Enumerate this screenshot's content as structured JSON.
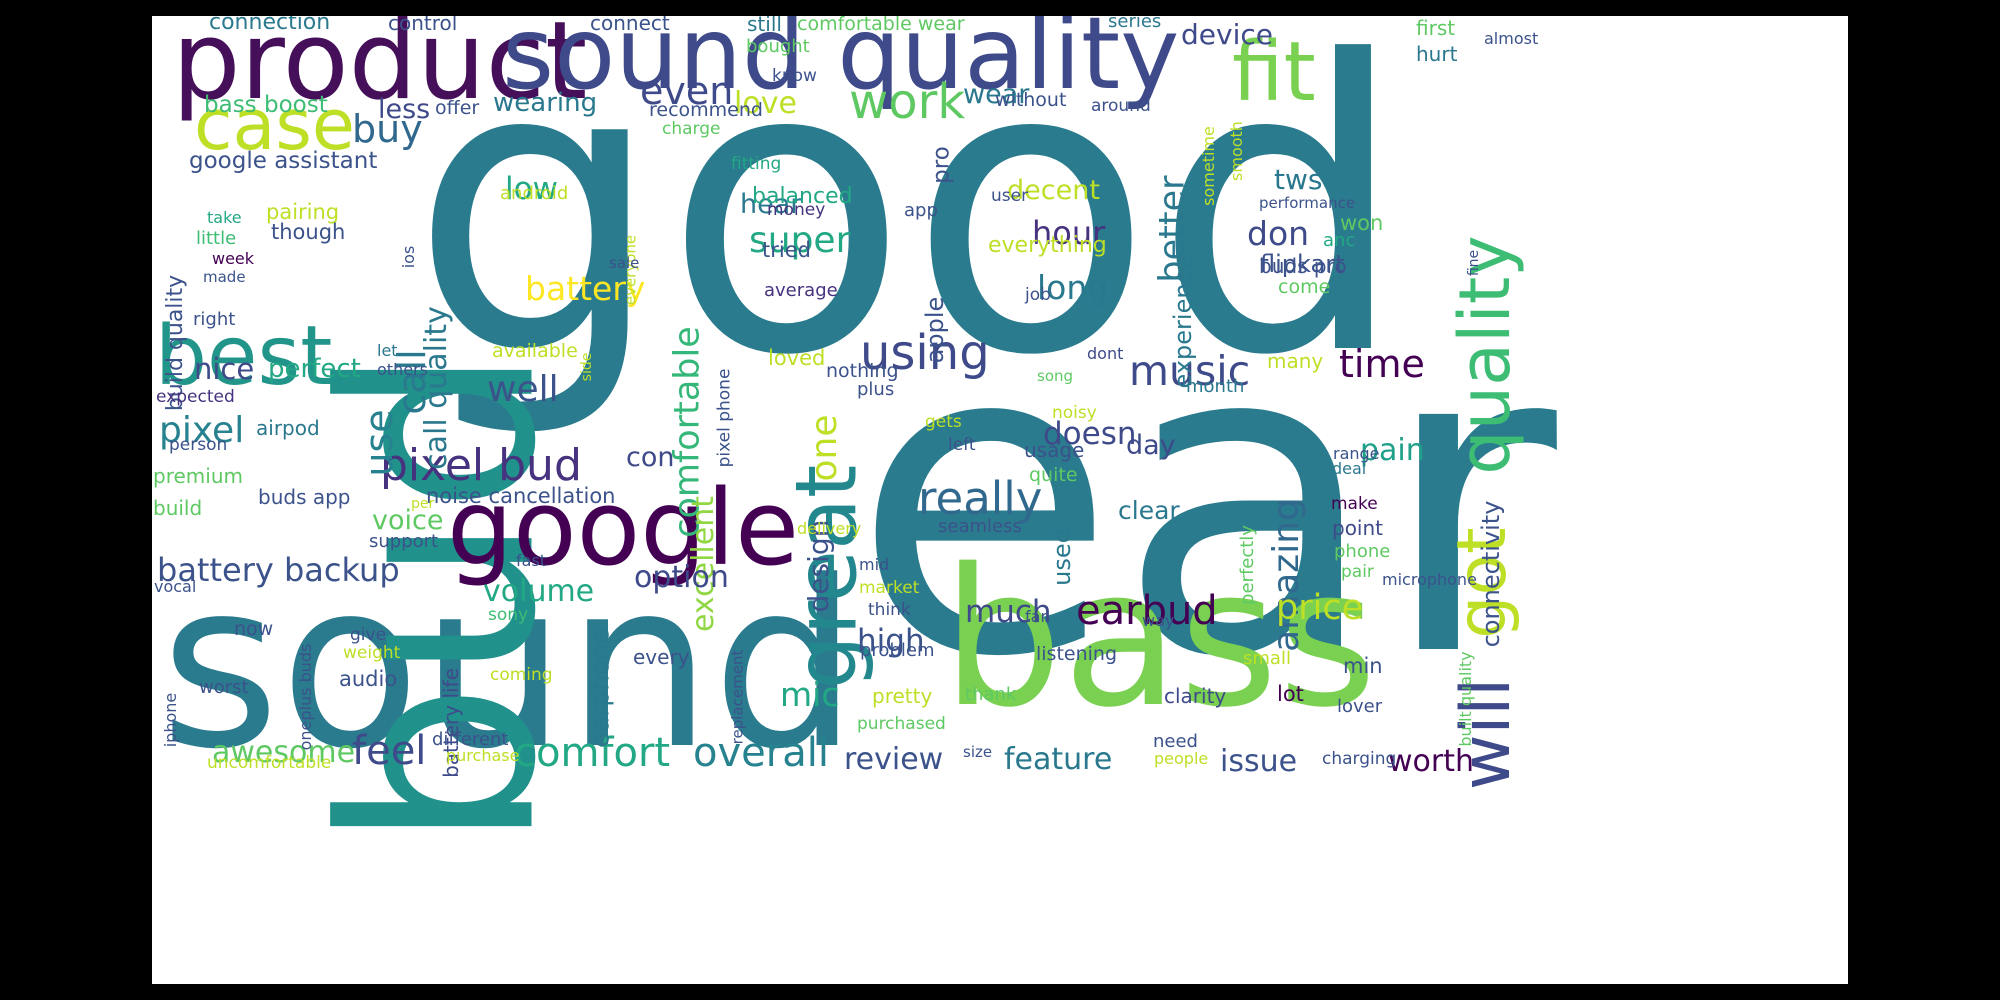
{
  "words": [
    {
      "text": "good",
      "color": "#2a7b8e"
    },
    {
      "text": "ear",
      "color": "#2a7b8e"
    },
    {
      "text": "sound",
      "color": "#2a7b8e"
    },
    {
      "text": "bass",
      "color": "#7ad151"
    },
    {
      "text": "bud",
      "color": "#21918c"
    },
    {
      "text": "product",
      "color": "#450f5a"
    },
    {
      "text": "sound quality",
      "color": "#3e4a89"
    },
    {
      "text": "google",
      "color": "#440154"
    },
    {
      "text": "great",
      "color": "#23888e"
    },
    {
      "text": "best",
      "color": "#22958b"
    },
    {
      "text": "case",
      "color": "#bddf26"
    },
    {
      "text": "fit",
      "color": "#7ad151"
    },
    {
      "text": "quality",
      "color": "#3dbc74"
    },
    {
      "text": "got",
      "color": "#bddf26"
    },
    {
      "text": "will",
      "color": "#3e4a89"
    },
    {
      "text": "pixel bud",
      "color": "#46327e"
    },
    {
      "text": "work",
      "color": "#5ec962"
    },
    {
      "text": "using",
      "color": "#3e4a89"
    },
    {
      "text": "really",
      "color": "#31688e"
    },
    {
      "text": "earbud",
      "color": "#440154"
    },
    {
      "text": "music",
      "color": "#3e4a89"
    },
    {
      "text": "time",
      "color": "#440154"
    },
    {
      "text": "amazing",
      "color": "#31688e"
    },
    {
      "text": "comfortable",
      "color": "#35b779"
    },
    {
      "text": "call",
      "color": "#2a788e"
    },
    {
      "text": "comfort",
      "color": "#22a884"
    },
    {
      "text": "overall",
      "color": "#26828e"
    },
    {
      "text": "feel",
      "color": "#3e4a89"
    },
    {
      "text": "battery backup",
      "color": "#3b528b"
    },
    {
      "text": "price",
      "color": "#bddf26"
    },
    {
      "text": "excellent",
      "color": "#90d743"
    },
    {
      "text": "one",
      "color": "#bddf26"
    },
    {
      "text": "even",
      "color": "#3e4a89"
    },
    {
      "text": "buy",
      "color": "#31688e"
    },
    {
      "text": "use",
      "color": "#26828e"
    },
    {
      "text": "call quality",
      "color": "#2a788e"
    },
    {
      "text": "better",
      "color": "#2a788e"
    },
    {
      "text": "super",
      "color": "#22a884"
    },
    {
      "text": "battery",
      "color": "#fde725"
    },
    {
      "text": "well",
      "color": "#3b528b"
    },
    {
      "text": "pixel",
      "color": "#26828e"
    },
    {
      "text": "don",
      "color": "#3e4a89"
    },
    {
      "text": "hour",
      "color": "#46327e"
    },
    {
      "text": "long",
      "color": "#2a788e"
    },
    {
      "text": "volume",
      "color": "#22a884"
    },
    {
      "text": "option",
      "color": "#3e4a89"
    },
    {
      "text": "awesome",
      "color": "#5ec962"
    },
    {
      "text": "review",
      "color": "#3b528b"
    },
    {
      "text": "feature",
      "color": "#2a788e"
    },
    {
      "text": "issue",
      "color": "#3b528b"
    },
    {
      "text": "worth",
      "color": "#440154"
    },
    {
      "text": "much",
      "color": "#3e4a89"
    },
    {
      "text": "high",
      "color": "#3b528b"
    },
    {
      "text": "mic",
      "color": "#22a884"
    },
    {
      "text": "pain",
      "color": "#1fa088"
    },
    {
      "text": "connectivity",
      "color": "#3b528b"
    },
    {
      "text": "design",
      "color": "#3b528b"
    },
    {
      "text": "doesn",
      "color": "#3e4a89"
    },
    {
      "text": "low",
      "color": "#22a884"
    },
    {
      "text": "nice",
      "color": "#3e4a89"
    },
    {
      "text": "perfect",
      "color": "#22a884"
    },
    {
      "text": "decent",
      "color": "#bddf26"
    },
    {
      "text": "tws",
      "color": "#2a788e"
    },
    {
      "text": "flipkart",
      "color": "#3b528b"
    },
    {
      "text": "device",
      "color": "#3e4a89"
    },
    {
      "text": "wear",
      "color": "#2a788e"
    },
    {
      "text": "love",
      "color": "#bddf26"
    },
    {
      "text": "wearing",
      "color": "#2a788e"
    },
    {
      "text": "less",
      "color": "#3e4a89"
    },
    {
      "text": "bass boost",
      "color": "#3dbc74"
    },
    {
      "text": "google assistant",
      "color": "#3b528b"
    },
    {
      "text": "build quality",
      "color": "#3b528b"
    },
    {
      "text": "experience",
      "color": "#2a788e"
    },
    {
      "text": "earphone",
      "color": "#2a788e"
    },
    {
      "text": "used",
      "color": "#2a788e"
    },
    {
      "text": "apple",
      "color": "#3b528b"
    },
    {
      "text": "pro",
      "color": "#3b528b"
    },
    {
      "text": "hear",
      "color": "#2a788e"
    },
    {
      "text": "balanced",
      "color": "#22a884"
    },
    {
      "text": "everything",
      "color": "#bddf26"
    },
    {
      "text": "day",
      "color": "#3e4a89"
    },
    {
      "text": "con",
      "color": "#3e4a89"
    },
    {
      "text": "voice",
      "color": "#5ec962"
    },
    {
      "text": "clear",
      "color": "#2a788e"
    },
    {
      "text": "noise cancellation",
      "color": "#3b528b"
    },
    {
      "text": "connection",
      "color": "#2a788e"
    },
    {
      "text": "control",
      "color": "#3b528b"
    },
    {
      "text": "connect",
      "color": "#3b528b"
    },
    {
      "text": "still",
      "color": "#2a788e"
    },
    {
      "text": "comfortable wear",
      "color": "#5ec962"
    },
    {
      "text": "series",
      "color": "#2a788e"
    },
    {
      "text": "first",
      "color": "#5ec962"
    },
    {
      "text": "almost",
      "color": "#3b528b"
    },
    {
      "text": "hurt",
      "color": "#2a788e"
    },
    {
      "text": "bought",
      "color": "#5ec962"
    },
    {
      "text": "know",
      "color": "#3b528b"
    },
    {
      "text": "without",
      "color": "#3b528b"
    },
    {
      "text": "around",
      "color": "#3b528b"
    },
    {
      "text": "sometime",
      "color": "#bddf26"
    },
    {
      "text": "smooth",
      "color": "#bddf26"
    },
    {
      "text": "offer",
      "color": "#3b528b"
    },
    {
      "text": "recommend",
      "color": "#3b528b"
    },
    {
      "text": "charge",
      "color": "#5ec962"
    },
    {
      "text": "fitting",
      "color": "#22a884"
    },
    {
      "text": "android",
      "color": "#bddf26"
    },
    {
      "text": "everyone",
      "color": "#bddf26"
    },
    {
      "text": "money",
      "color": "#46327e"
    },
    {
      "text": "app",
      "color": "#3b528b"
    },
    {
      "text": "user",
      "color": "#3b528b"
    },
    {
      "text": "performance",
      "color": "#3b528b"
    },
    {
      "text": "won",
      "color": "#5ec962"
    },
    {
      "text": "anc",
      "color": "#22a884"
    },
    {
      "text": "fine",
      "color": "#3b528b"
    },
    {
      "text": "take",
      "color": "#22a884"
    },
    {
      "text": "little",
      "color": "#3dbc74"
    },
    {
      "text": "pairing",
      "color": "#bddf26"
    },
    {
      "text": "though",
      "color": "#3b528b"
    },
    {
      "text": "ios",
      "color": "#3b528b"
    },
    {
      "text": "week",
      "color": "#440154"
    },
    {
      "text": "made",
      "color": "#3b528b"
    },
    {
      "text": "sale",
      "color": "#3b528b"
    },
    {
      "text": "tried",
      "color": "#3b528b"
    },
    {
      "text": "average",
      "color": "#46327e"
    },
    {
      "text": "job",
      "color": "#3b528b"
    },
    {
      "text": "buds pro",
      "color": "#3b528b"
    },
    {
      "text": "come",
      "color": "#5ec962"
    },
    {
      "text": "right",
      "color": "#3b528b"
    },
    {
      "text": "let",
      "color": "#2a788e"
    },
    {
      "text": "available",
      "color": "#bddf26"
    },
    {
      "text": "loved",
      "color": "#bddf26"
    },
    {
      "text": "dont",
      "color": "#3e4a89"
    },
    {
      "text": "many",
      "color": "#bddf26"
    },
    {
      "text": "others",
      "color": "#3b528b"
    },
    {
      "text": "side",
      "color": "#bddf26"
    },
    {
      "text": "nothing",
      "color": "#3b528b"
    },
    {
      "text": "plus",
      "color": "#3b528b"
    },
    {
      "text": "song",
      "color": "#5ec962"
    },
    {
      "text": "month",
      "color": "#2a788e"
    },
    {
      "text": "expected",
      "color": "#46327e"
    },
    {
      "text": "pixel phone",
      "color": "#3b528b"
    },
    {
      "text": "person",
      "color": "#3b528b"
    },
    {
      "text": "airpod",
      "color": "#2a788e"
    },
    {
      "text": "gets",
      "color": "#bddf26"
    },
    {
      "text": "noisy",
      "color": "#bddf26"
    },
    {
      "text": "left",
      "color": "#3b528b"
    },
    {
      "text": "usage",
      "color": "#3b528b"
    },
    {
      "text": "range",
      "color": "#3b528b"
    },
    {
      "text": "deal",
      "color": "#2a788e"
    },
    {
      "text": "premium",
      "color": "#5ec962"
    },
    {
      "text": "quite",
      "color": "#5ec962"
    },
    {
      "text": "buds app",
      "color": "#3b528b"
    },
    {
      "text": "build",
      "color": "#5ec962"
    },
    {
      "text": "per",
      "color": "#bddf26"
    },
    {
      "text": "perfectly",
      "color": "#5ec962"
    },
    {
      "text": "seamless",
      "color": "#3b528b"
    },
    {
      "text": "make",
      "color": "#440154"
    },
    {
      "text": "point",
      "color": "#3e4a89"
    },
    {
      "text": "support",
      "color": "#3b528b"
    },
    {
      "text": "delivery",
      "color": "#bddf26"
    },
    {
      "text": "fast",
      "color": "#3b528b"
    },
    {
      "text": "mid",
      "color": "#3b528b"
    },
    {
      "text": "phone",
      "color": "#5ec962"
    },
    {
      "text": "pair",
      "color": "#5ec962"
    },
    {
      "text": "microphone",
      "color": "#3b528b"
    },
    {
      "text": "vocal",
      "color": "#3b528b"
    },
    {
      "text": "market",
      "color": "#bddf26"
    },
    {
      "text": "think",
      "color": "#3b528b"
    },
    {
      "text": "oneplus buds",
      "color": "#3b528b"
    },
    {
      "text": "battery life",
      "color": "#3e4a89"
    },
    {
      "text": "sony",
      "color": "#3dbc74"
    },
    {
      "text": "replacement",
      "color": "#3b528b"
    },
    {
      "text": "far",
      "color": "#3b528b"
    },
    {
      "text": "way",
      "color": "#3b528b"
    },
    {
      "text": "built quality",
      "color": "#5ec962"
    },
    {
      "text": "now",
      "color": "#3b528b"
    },
    {
      "text": "give",
      "color": "#3b528b"
    },
    {
      "text": "weight",
      "color": "#bddf26"
    },
    {
      "text": "every",
      "color": "#3b528b"
    },
    {
      "text": "problem",
      "color": "#3b528b"
    },
    {
      "text": "listening",
      "color": "#3b528b"
    },
    {
      "text": "small",
      "color": "#bddf26"
    },
    {
      "text": "min",
      "color": "#3b528b"
    },
    {
      "text": "iphone",
      "color": "#3b528b"
    },
    {
      "text": "worst",
      "color": "#3b528b"
    },
    {
      "text": "audio",
      "color": "#3b528b"
    },
    {
      "text": "coming",
      "color": "#bddf26"
    },
    {
      "text": "pretty",
      "color": "#bddf26"
    },
    {
      "text": "thank",
      "color": "#5ec962"
    },
    {
      "text": "clarity",
      "color": "#3e4a89"
    },
    {
      "text": "lot",
      "color": "#440154"
    },
    {
      "text": "lover",
      "color": "#3b528b"
    },
    {
      "text": "purchased",
      "color": "#5ec962"
    },
    {
      "text": "different",
      "color": "#3b528b"
    },
    {
      "text": "purchase",
      "color": "#bddf26"
    },
    {
      "text": "uncomfortable",
      "color": "#bddf26"
    },
    {
      "text": "size",
      "color": "#3b528b"
    },
    {
      "text": "need",
      "color": "#3b528b"
    },
    {
      "text": "people",
      "color": "#bddf26"
    },
    {
      "text": "charging",
      "color": "#3b528b"
    }
  ]
}
